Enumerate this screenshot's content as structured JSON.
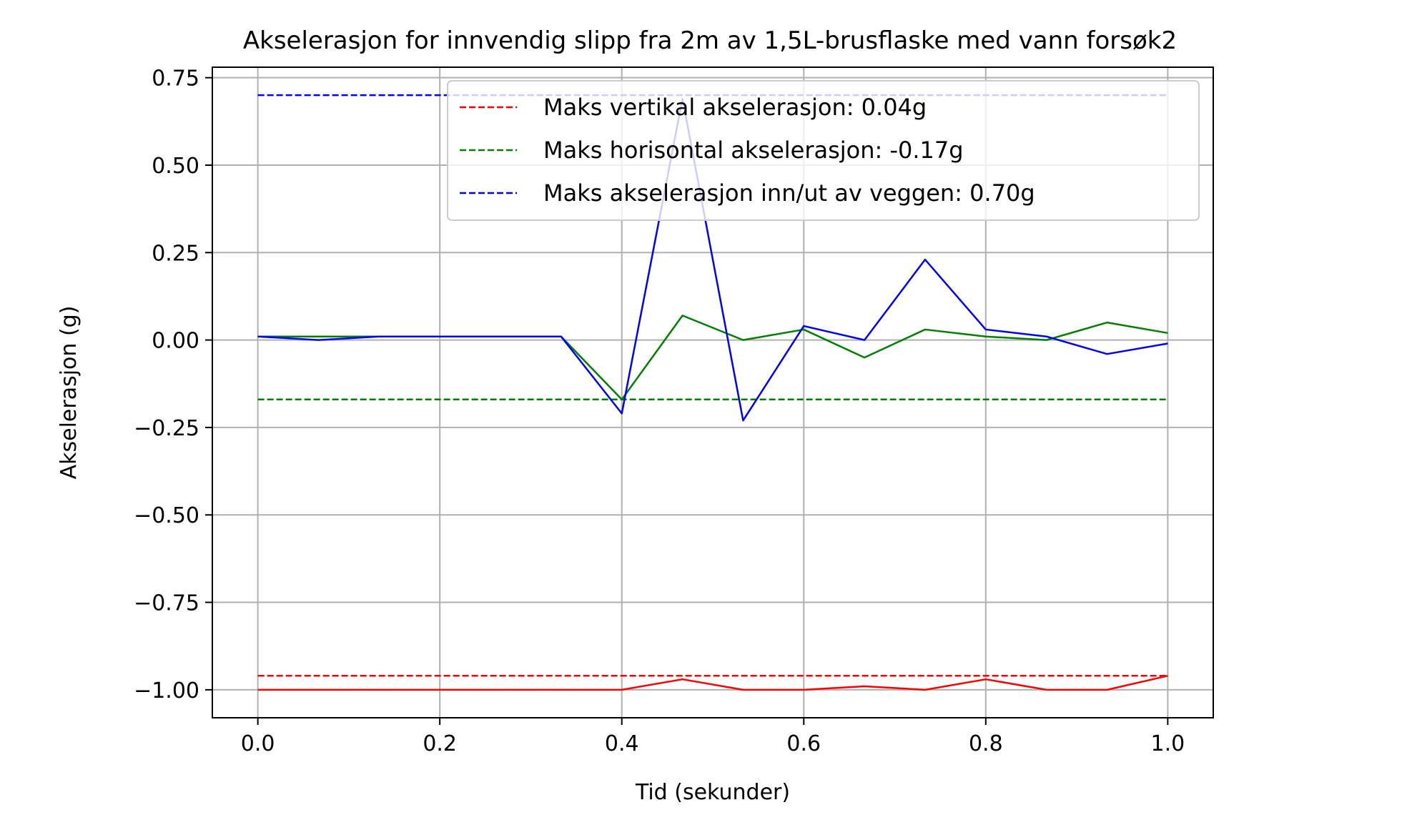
{
  "chart_data": {
    "type": "line",
    "title": "Akselerasjon for innvendig slipp fra 2m av 1,5L-brusflaske med vann forsøk2",
    "xlabel": "Tid (sekunder)",
    "ylabel": "Akselerasjon (g)",
    "xlim": [
      -0.05,
      1.05
    ],
    "ylim": [
      -1.08,
      0.78
    ],
    "xticks": [
      0.0,
      0.2,
      0.4,
      0.6,
      0.8,
      1.0
    ],
    "xtick_labels": [
      "0.0",
      "0.2",
      "0.4",
      "0.6",
      "0.8",
      "1.0"
    ],
    "yticks": [
      0.75,
      0.5,
      0.25,
      0.0,
      -0.25,
      -0.5,
      -0.75,
      -1.0
    ],
    "ytick_labels": [
      "0.75",
      "0.50",
      "0.25",
      "0.00",
      "−0.25",
      "−0.50",
      "−0.75",
      "−1.00"
    ],
    "grid": true,
    "legend_position": "top-right",
    "x": [
      0.0,
      0.0667,
      0.1333,
      0.2,
      0.2667,
      0.3333,
      0.4,
      0.4667,
      0.5333,
      0.6,
      0.6667,
      0.7333,
      0.8,
      0.8667,
      0.9333,
      1.0
    ],
    "series": [
      {
        "color": "#ff0000",
        "style": "solid",
        "values": [
          -1.0,
          -1.0,
          -1.0,
          -1.0,
          -1.0,
          -1.0,
          -1.0,
          -0.97,
          -1.0,
          -1.0,
          -0.99,
          -1.0,
          -0.97,
          -1.0,
          -1.0,
          -0.96
        ]
      },
      {
        "color": "#008000",
        "style": "solid",
        "values": [
          0.01,
          0.01,
          0.01,
          0.01,
          0.01,
          0.01,
          -0.17,
          0.07,
          0.0,
          0.03,
          -0.05,
          0.03,
          0.01,
          0.0,
          0.05,
          0.02
        ]
      },
      {
        "color": "#0000ff",
        "style": "solid",
        "values": [
          0.01,
          0.0,
          0.01,
          0.01,
          0.01,
          0.01,
          -0.21,
          0.69,
          -0.23,
          0.04,
          0.0,
          0.23,
          0.03,
          0.01,
          -0.04,
          -0.01
        ]
      }
    ],
    "reference_lines": [
      {
        "name": "Maks vertikal akselerasjon: 0.04g",
        "y": -0.96,
        "x_range": [
          0.0,
          1.0
        ],
        "color": "#ff0000",
        "style": "dashed"
      },
      {
        "name": "Maks horisontal akselerasjon: -0.17g",
        "y": -0.17,
        "x_range": [
          0.0,
          1.0
        ],
        "color": "#008000",
        "style": "dashed"
      },
      {
        "name": "Maks akselerasjon inn/ut av veggen: 0.70g",
        "y": 0.7,
        "x_range": [
          0.0,
          1.0
        ],
        "color": "#0000ff",
        "style": "dashed"
      }
    ]
  }
}
